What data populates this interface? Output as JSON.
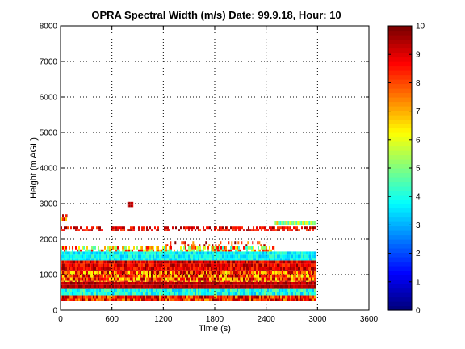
{
  "chart_data": {
    "type": "heatmap",
    "title": "OPRA Spectral Width (m/s)  Date: 99.9.18, Hour: 10",
    "xlabel": "Time (s)",
    "ylabel": "Height (m AGL)",
    "xlim": [
      0,
      3600
    ],
    "ylim": [
      0,
      8000
    ],
    "xticks": [
      0,
      600,
      1200,
      1800,
      2400,
      3000,
      3600
    ],
    "yticks": [
      0,
      1000,
      2000,
      3000,
      4000,
      5000,
      6000,
      7000,
      8000
    ],
    "grid": true,
    "grid_style": "dotted",
    "colorbar": {
      "min": 0,
      "max": 10,
      "ticks": [
        0,
        1,
        2,
        3,
        4,
        5,
        6,
        7,
        8,
        9,
        10
      ],
      "colormap": "jet",
      "placement": "right"
    },
    "data_extent_time": [
      0,
      2980
    ],
    "layers": [
      {
        "height_range": [
          250,
          420
        ],
        "value_range": [
          7,
          10
        ],
        "x_range": [
          0,
          2980
        ],
        "coverage": 1.0
      },
      {
        "height_range": [
          420,
          600
        ],
        "value_range": [
          3,
          5
        ],
        "x_range": [
          0,
          2980
        ],
        "coverage": 1.0
      },
      {
        "height_range": [
          600,
          800
        ],
        "value_range": [
          9,
          10
        ],
        "x_range": [
          0,
          2980
        ],
        "coverage": 1.0
      },
      {
        "height_range": [
          800,
          1100
        ],
        "value_range": [
          6,
          10
        ],
        "x_range": [
          0,
          2980
        ],
        "coverage": 1.0
      },
      {
        "height_range": [
          1100,
          1400
        ],
        "value_range": [
          8,
          10
        ],
        "x_range": [
          0,
          2980
        ],
        "coverage": 1.0
      },
      {
        "height_range": [
          1400,
          1650
        ],
        "value_range": [
          3,
          4.5
        ],
        "x_range": [
          0,
          2980
        ],
        "coverage": 1.0
      },
      {
        "height_range": [
          1650,
          1800
        ],
        "value_range": [
          4,
          9
        ],
        "x_range": [
          0,
          2500
        ],
        "coverage": 0.75
      },
      {
        "height_range": [
          1800,
          1950
        ],
        "value_range": [
          7,
          10
        ],
        "x_range": [
          1200,
          2400
        ],
        "coverage": 0.3
      },
      {
        "height_range": [
          2230,
          2360
        ],
        "value_range": [
          8,
          10
        ],
        "x_range": [
          0,
          2980
        ],
        "coverage": 0.6
      },
      {
        "height_range": [
          2400,
          2500
        ],
        "value_range": [
          4,
          7
        ],
        "x_range": [
          2500,
          2980
        ],
        "coverage": 0.9
      },
      {
        "height_range": [
          2500,
          2700
        ],
        "value_range": [
          6,
          10
        ],
        "x_range": [
          0,
          80
        ],
        "coverage": 0.7
      },
      {
        "height_range": [
          2900,
          3050
        ],
        "value_range": [
          9,
          10
        ],
        "x_range": [
          780,
          850
        ],
        "coverage": 1.0
      }
    ]
  }
}
